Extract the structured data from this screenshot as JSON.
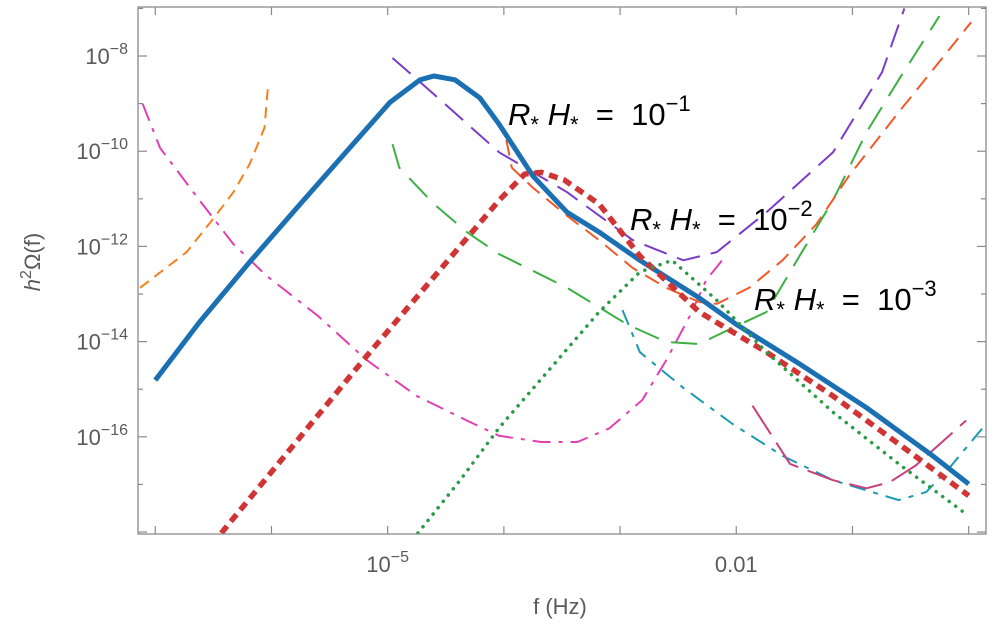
{
  "chart_data": {
    "type": "line",
    "xscale": "log",
    "yscale": "log",
    "xlabel": "f (Hz)",
    "ylabel_parts": {
      "h": "h",
      "sup": "2",
      "rest": "Ω(f)"
    },
    "xlim": [
      7.1e-08,
      1.41
    ],
    "ylim": [
      9.1e-19,
      1.07e-07
    ],
    "grid": false,
    "x_ticks": [
      1e-07,
      1e-06,
      1e-05,
      0.0001,
      0.001,
      0.01,
      0.1,
      1
    ],
    "x_tick_labels": [
      {
        "value": 1e-05,
        "base": "10",
        "exp": "−5"
      },
      {
        "value": 0.01,
        "text": "0.01"
      }
    ],
    "y_ticks": [
      1e-18,
      1e-17,
      1e-16,
      1e-15,
      1e-14,
      1e-13,
      1e-12,
      1e-11,
      1e-10,
      1e-09,
      1e-08,
      1e-07
    ],
    "y_tick_labels": [
      {
        "value": 1e-08,
        "base": "10",
        "exp": "−8"
      },
      {
        "value": 1e-10,
        "base": "10",
        "exp": "−10"
      },
      {
        "value": 1e-12,
        "base": "10",
        "exp": "−12"
      },
      {
        "value": 1e-14,
        "base": "10",
        "exp": "−14"
      },
      {
        "value": 1e-16,
        "base": "10",
        "exp": "−16"
      }
    ],
    "annotations": [
      {
        "r": "R",
        "h": "H",
        "star": "*",
        "eq": "=",
        "base": "10",
        "exp": "−1"
      },
      {
        "r": "R",
        "h": "H",
        "star": "*",
        "eq": "=",
        "base": "10",
        "exp": "−2"
      },
      {
        "r": "R",
        "h": "H",
        "star": "*",
        "eq": "=",
        "base": "10",
        "exp": "−3"
      }
    ],
    "series": [
      {
        "color": "#1a70b2",
        "style": "solid-thick",
        "x": [
          1e-07,
          2.4e-07,
          6.5e-07,
          1.74e-06,
          4.7e-06,
          1.05e-05,
          1.9e-05,
          2.5e-05,
          3.8e-05,
          6.2e-05,
          9.1e-05,
          0.000178,
          0.00035,
          0.00066,
          0.00148,
          0.0048,
          0.01,
          0.035,
          0.132,
          0.49,
          1.0
        ],
        "y": [
          1.55e-15,
          2.57e-14,
          4.7e-13,
          7.4e-12,
          1.17e-10,
          1.07e-09,
          3.16e-09,
          3.8e-09,
          3.16e-09,
          1.32e-09,
          3.7e-10,
          3e-11,
          5.2e-12,
          2e-12,
          5.1e-13,
          8.3e-14,
          2.3e-14,
          3.4e-15,
          4.1e-16,
          4e-17,
          1.02e-17
        ]
      },
      {
        "color": "#d03434",
        "style": "dashed-thick",
        "x": [
          3.7e-07,
          6.6e-06,
          9.1e-05,
          0.000151,
          0.00021,
          0.00033,
          0.00066,
          0.00148,
          0.0048,
          0.0182,
          0.068,
          0.25,
          1.0
        ],
        "y": [
          9.5e-19,
          5e-15,
          9.3e-12,
          3.3e-11,
          3.6e-11,
          2.5e-11,
          7.8e-12,
          6.3e-13,
          4.2e-14,
          6e-15,
          7.2e-16,
          7.1e-17,
          5.8e-18
        ]
      },
      {
        "color": "#2a9a48",
        "style": "dotted",
        "x": [
          1.82e-05,
          4.2e-05,
          9.1e-05,
          0.00066,
          0.00148,
          0.0028,
          0.0068,
          0.0182,
          0.068,
          0.25,
          0.95
        ],
        "y": [
          9.5e-19,
          1.23e-17,
          1.55e-16,
          4.2e-14,
          2.9e-13,
          5.1e-13,
          7.4e-14,
          6e-15,
          3.3e-16,
          2.7e-17,
          2.4e-18
        ]
      },
      {
        "color": "#f2801e",
        "style": "short-dash",
        "x": [
          7.4e-08,
          1.86e-07,
          3.2e-07,
          4.7e-07,
          6.5e-07,
          8.7e-07,
          9.3e-07
        ],
        "y": [
          1.35e-13,
          7.6e-13,
          4e-12,
          1.38e-11,
          5.4e-11,
          3.1e-10,
          2.1e-09
        ]
      },
      {
        "color": "#e040b0",
        "style": "dash-dot",
        "x": [
          7.8e-08,
          1.1e-07,
          2.4e-07,
          4.7e-07,
          9.1e-07,
          2.5e-06,
          6.6e-06,
          1.78e-05,
          4.8e-05,
          9.1e-05,
          0.00021,
          0.00043,
          0.00081,
          0.00155,
          0.0025,
          0.004,
          0.0055,
          0.0081
        ],
        "y": [
          9.8e-10,
          1.17e-10,
          9.3e-12,
          1.12e-12,
          2.4e-13,
          3.5e-14,
          4.1e-15,
          7.2e-16,
          2.2e-16,
          1.05e-16,
          7.8e-17,
          7.8e-17,
          1.51e-16,
          5.9e-16,
          4.1e-15,
          3.5e-14,
          1.95e-13,
          6.3e-13
        ]
      },
      {
        "color": "#7a3cc8",
        "style": "long-dash",
        "x": [
          1.1e-05,
          2.5e-05,
          9.1e-05,
          0.00035,
          0.00129,
          0.0035,
          0.0068,
          0.0182,
          0.068,
          0.18,
          0.28
        ],
        "y": [
          9.1e-09,
          1.58e-09,
          9.5e-11,
          1.38e-11,
          1.35e-12,
          5.1e-13,
          7.6e-13,
          5.2e-12,
          9.5e-11,
          4.6e-09,
          1e-07
        ]
      },
      {
        "color": "#3cb043",
        "style": "long-dash-2",
        "x": [
          1.1e-05,
          1.26e-05,
          2.5e-05,
          4.8e-05,
          9.1e-05,
          0.00035,
          0.00115,
          0.0025,
          0.0048,
          0.0093,
          0.0182,
          0.035,
          0.068,
          0.132,
          0.25,
          0.56
        ],
        "y": [
          1.41e-10,
          4.5e-11,
          7.8e-12,
          2e-12,
          6.9e-13,
          1.35e-13,
          2.3e-14,
          9.8e-15,
          8.9e-15,
          1.95e-14,
          4.2e-14,
          6.3e-13,
          9.3e-12,
          2.5e-10,
          3.16e-09,
          6.9e-08
        ]
      },
      {
        "color": "#f05a28",
        "style": "medium-dash",
        "x": [
          0.000105,
          0.000117,
          0.000178,
          0.00035,
          0.00066,
          0.00129,
          0.0025,
          0.0048,
          0.0068,
          0.0129,
          0.025,
          0.049,
          0.093,
          0.25,
          1.05
        ],
        "y": [
          1.74e-10,
          4.5e-11,
          1.7e-11,
          4.4e-12,
          1.35e-12,
          3.5e-13,
          1.35e-13,
          6.8e-14,
          6.2e-14,
          1.35e-13,
          5.1e-13,
          2.95e-12,
          3e-11,
          6.6e-10,
          5.1e-08
        ]
      },
      {
        "color": "#1a9ab2",
        "style": "dash-dot-2",
        "x": [
          0.00105,
          0.00148,
          0.0035,
          0.0093,
          0.025,
          0.068,
          0.25,
          0.43,
          0.68,
          1.41
        ],
        "y": [
          4.6e-14,
          6e-15,
          1.07e-15,
          1.86e-16,
          4e-17,
          1.23e-17,
          4.7e-18,
          6.9e-18,
          2.2e-17,
          1.86e-16
        ]
      },
      {
        "color": "#c8407e",
        "style": "long-dash-3",
        "x": [
          0.0138,
          0.029,
          0.068,
          0.132,
          0.21,
          0.35,
          0.95
        ],
        "y": [
          4.5e-16,
          2.7e-17,
          1.23e-17,
          8.3e-18,
          1.12e-17,
          2.5e-17,
          2.2e-16
        ]
      }
    ]
  }
}
